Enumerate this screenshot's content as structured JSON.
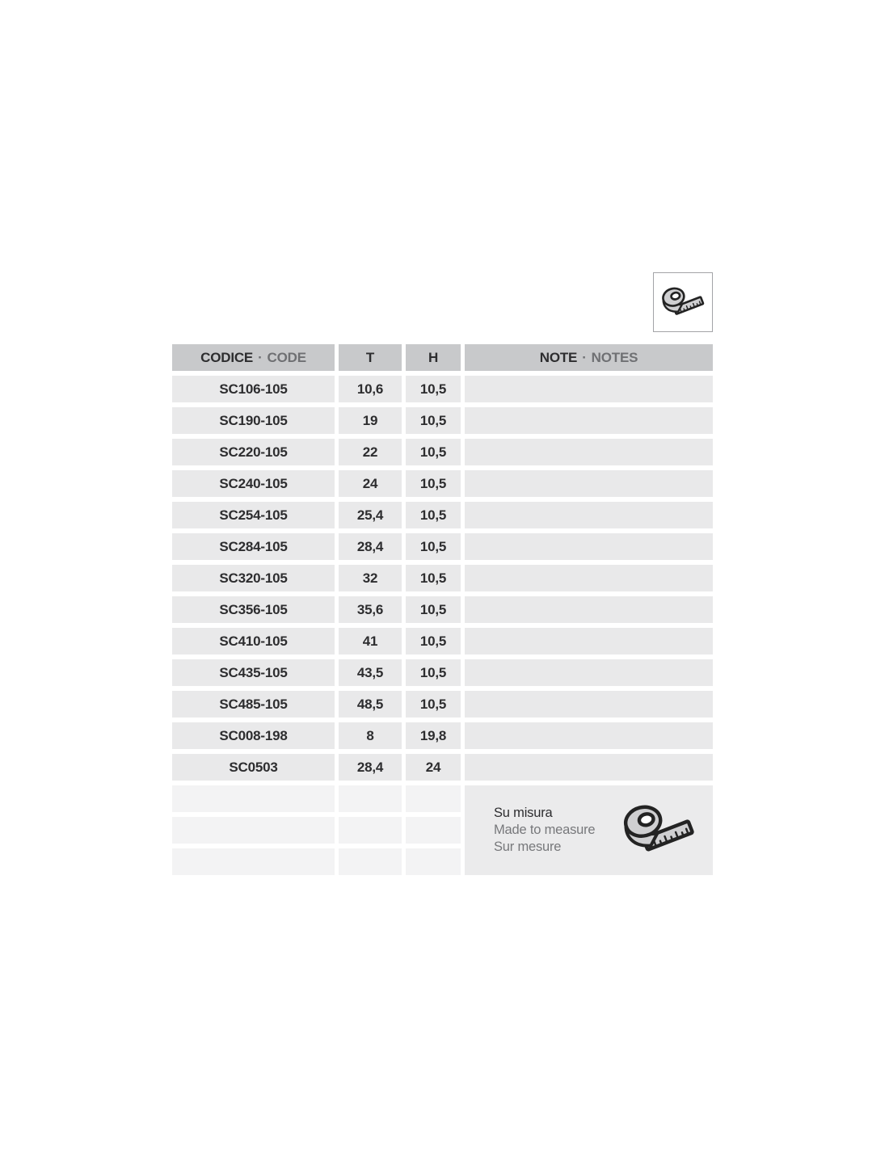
{
  "icons": {
    "top_box_icon": "measuring-tape-icon",
    "note_icon": "measuring-tape-icon"
  },
  "colors": {
    "header_bg": "#c8c9cb",
    "row_bg": "#e9e9ea",
    "empty_row_bg": "#f3f3f4",
    "note_block_bg": "#ebebec",
    "text_dark": "#2d2d2f",
    "text_gray": "#6f7073",
    "icon_fill": "#cfcfd1",
    "icon_stroke": "#232323"
  },
  "table": {
    "columns": [
      {
        "label_primary": "CODICE",
        "separator": "·",
        "label_secondary": "CODE"
      },
      {
        "label_primary": "T",
        "separator": "",
        "label_secondary": ""
      },
      {
        "label_primary": "H",
        "separator": "",
        "label_secondary": ""
      },
      {
        "label_primary": "NOTE",
        "separator": "·",
        "label_secondary": "NOTES"
      }
    ],
    "rows": [
      {
        "code": "SC106-105",
        "t": "10,6",
        "h": "10,5",
        "note": ""
      },
      {
        "code": "SC190-105",
        "t": "19",
        "h": "10,5",
        "note": ""
      },
      {
        "code": "SC220-105",
        "t": "22",
        "h": "10,5",
        "note": ""
      },
      {
        "code": "SC240-105",
        "t": "24",
        "h": "10,5",
        "note": ""
      },
      {
        "code": "SC254-105",
        "t": "25,4",
        "h": "10,5",
        "note": ""
      },
      {
        "code": "SC284-105",
        "t": "28,4",
        "h": "10,5",
        "note": ""
      },
      {
        "code": "SC320-105",
        "t": "32",
        "h": "10,5",
        "note": ""
      },
      {
        "code": "SC356-105",
        "t": "35,6",
        "h": "10,5",
        "note": ""
      },
      {
        "code": "SC410-105",
        "t": "41",
        "h": "10,5",
        "note": ""
      },
      {
        "code": "SC435-105",
        "t": "43,5",
        "h": "10,5",
        "note": ""
      },
      {
        "code": "SC485-105",
        "t": "48,5",
        "h": "10,5",
        "note": ""
      },
      {
        "code": "SC008-198",
        "t": "8",
        "h": "19,8",
        "note": ""
      },
      {
        "code": "SC0503",
        "t": "28,4",
        "h": "24",
        "note": ""
      }
    ],
    "empty_rows": 3,
    "made_to_measure": {
      "it": "Su misura",
      "en": "Made to measure",
      "fr": "Sur mesure"
    }
  }
}
